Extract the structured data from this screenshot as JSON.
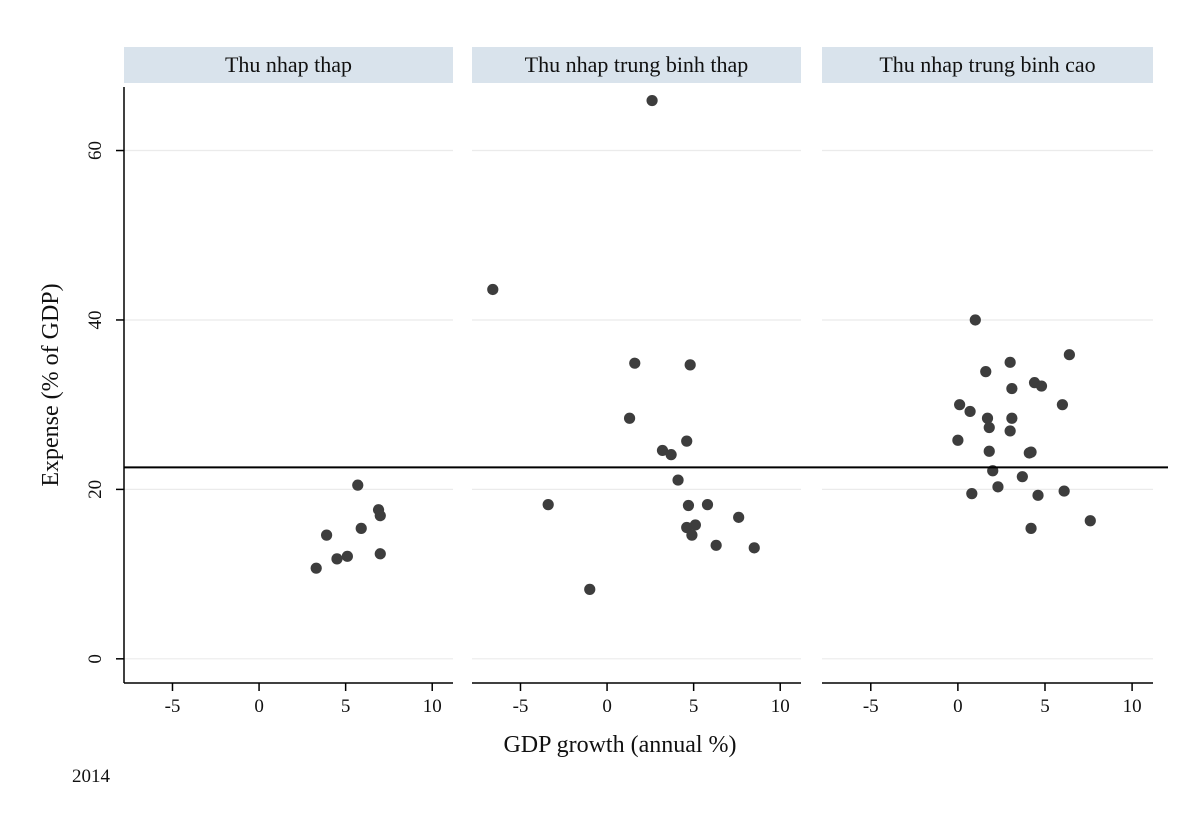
{
  "chart_data": {
    "type": "scatter",
    "ylabel": "Expense (% of GDP)",
    "xlabel": "GDP growth (annual %)",
    "note": "2014",
    "xlim": [
      -7.8,
      11.2
    ],
    "ylim": [
      -2.5,
      67.5
    ],
    "xticks": [
      "-5",
      "0",
      "5",
      "10"
    ],
    "xtick_values": [
      -5,
      0,
      5,
      10
    ],
    "yticks": [
      "0",
      "20",
      "40",
      "60"
    ],
    "ytick_values": [
      0,
      20,
      40,
      60
    ],
    "reference_line_y": 22.6,
    "grid": "horizontal",
    "colors": {
      "marker": "#3d3d3d",
      "header_fill": "#d9e3ec",
      "line": "#000000",
      "axis": "#000000",
      "grid": "#ebebeb"
    },
    "panels": [
      {
        "title": "Thu nhap thap",
        "points": [
          {
            "x": 3.3,
            "y": 10.7
          },
          {
            "x": 3.9,
            "y": 14.6
          },
          {
            "x": 4.5,
            "y": 11.8
          },
          {
            "x": 5.1,
            "y": 12.1
          },
          {
            "x": 5.7,
            "y": 20.5
          },
          {
            "x": 5.9,
            "y": 15.4
          },
          {
            "x": 6.9,
            "y": 17.6
          },
          {
            "x": 7.0,
            "y": 16.9
          },
          {
            "x": 7.0,
            "y": 12.4
          }
        ]
      },
      {
        "title": "Thu nhap trung binh thap",
        "points": [
          {
            "x": -6.6,
            "y": 43.6
          },
          {
            "x": -3.4,
            "y": 18.2
          },
          {
            "x": -1.0,
            "y": 8.2
          },
          {
            "x": 1.3,
            "y": 28.4
          },
          {
            "x": 1.6,
            "y": 34.9
          },
          {
            "x": 2.6,
            "y": 65.9
          },
          {
            "x": 3.2,
            "y": 24.6
          },
          {
            "x": 3.7,
            "y": 24.1
          },
          {
            "x": 4.1,
            "y": 21.1
          },
          {
            "x": 4.6,
            "y": 25.7
          },
          {
            "x": 4.6,
            "y": 15.5
          },
          {
            "x": 4.7,
            "y": 18.1
          },
          {
            "x": 4.8,
            "y": 34.7
          },
          {
            "x": 4.9,
            "y": 14.6
          },
          {
            "x": 5.1,
            "y": 15.8
          },
          {
            "x": 5.8,
            "y": 18.2
          },
          {
            "x": 6.3,
            "y": 13.4
          },
          {
            "x": 7.6,
            "y": 16.7
          },
          {
            "x": 8.5,
            "y": 13.1
          }
        ]
      },
      {
        "title": "Thu nhap trung binh cao",
        "points": [
          {
            "x": 0.0,
            "y": 25.8
          },
          {
            "x": 0.1,
            "y": 30.0
          },
          {
            "x": 0.7,
            "y": 29.2
          },
          {
            "x": 0.8,
            "y": 19.5
          },
          {
            "x": 1.0,
            "y": 40.0
          },
          {
            "x": 1.6,
            "y": 33.9
          },
          {
            "x": 1.7,
            "y": 28.4
          },
          {
            "x": 1.8,
            "y": 27.3
          },
          {
            "x": 1.8,
            "y": 24.5
          },
          {
            "x": 2.0,
            "y": 22.2
          },
          {
            "x": 2.3,
            "y": 20.3
          },
          {
            "x": 3.0,
            "y": 35.0
          },
          {
            "x": 3.0,
            "y": 26.9
          },
          {
            "x": 3.1,
            "y": 31.9
          },
          {
            "x": 3.1,
            "y": 28.4
          },
          {
            "x": 3.7,
            "y": 21.5
          },
          {
            "x": 4.1,
            "y": 24.3
          },
          {
            "x": 4.2,
            "y": 24.4
          },
          {
            "x": 4.2,
            "y": 15.4
          },
          {
            "x": 4.4,
            "y": 32.6
          },
          {
            "x": 4.6,
            "y": 19.3
          },
          {
            "x": 4.8,
            "y": 32.2
          },
          {
            "x": 6.0,
            "y": 30.0
          },
          {
            "x": 6.1,
            "y": 19.8
          },
          {
            "x": 6.4,
            "y": 35.9
          },
          {
            "x": 7.6,
            "y": 16.3
          }
        ]
      }
    ]
  }
}
